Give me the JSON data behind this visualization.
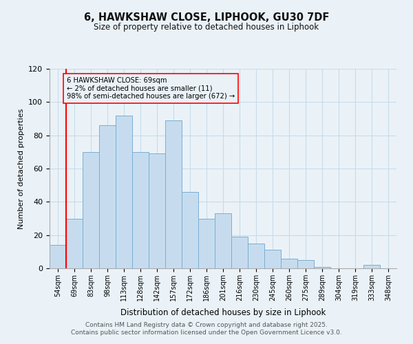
{
  "title": "6, HAWKSHAW CLOSE, LIPHOOK, GU30 7DF",
  "subtitle": "Size of property relative to detached houses in Liphook",
  "xlabel": "Distribution of detached houses by size in Liphook",
  "ylabel": "Number of detached properties",
  "bar_labels": [
    "54sqm",
    "69sqm",
    "83sqm",
    "98sqm",
    "113sqm",
    "128sqm",
    "142sqm",
    "157sqm",
    "172sqm",
    "186sqm",
    "201sqm",
    "216sqm",
    "230sqm",
    "245sqm",
    "260sqm",
    "275sqm",
    "289sqm",
    "304sqm",
    "319sqm",
    "333sqm",
    "348sqm"
  ],
  "bar_values": [
    14,
    30,
    70,
    86,
    92,
    70,
    69,
    89,
    46,
    30,
    33,
    19,
    15,
    11,
    6,
    5,
    1,
    0,
    0,
    2,
    0
  ],
  "bar_color": "#c6dcee",
  "bar_edge_color": "#7aaed4",
  "annotation_line_x_label": "69sqm",
  "annotation_line_color": "red",
  "annotation_box_text": "6 HAWKSHAW CLOSE: 69sqm\n← 2% of detached houses are smaller (11)\n98% of semi-detached houses are larger (672) →",
  "ylim": [
    0,
    120
  ],
  "yticks": [
    0,
    20,
    40,
    60,
    80,
    100,
    120
  ],
  "grid_color": "#c8dce8",
  "bg_color": "#eaf2f8",
  "footer_line1": "Contains HM Land Registry data © Crown copyright and database right 2025.",
  "footer_line2": "Contains public sector information licensed under the Open Government Licence v3.0."
}
